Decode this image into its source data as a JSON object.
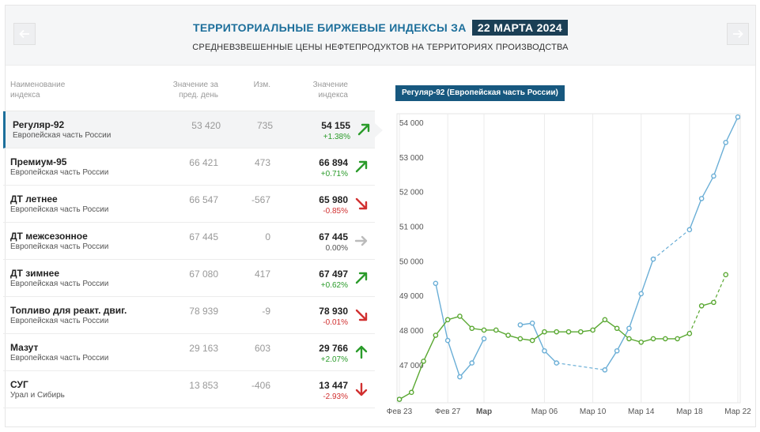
{
  "header": {
    "title": "ТЕРРИТОРИАЛЬНЫЕ БИРЖЕВЫЕ ИНДЕКСЫ ЗА",
    "date": "22 МАРТА 2024",
    "subtitle": "СРЕДНЕВЗВЕШЕННЫЕ ЦЕНЫ НЕФТЕПРОДУКТОВ НА ТЕРРИТОРИЯХ ПРОИЗВОДСТВА"
  },
  "table": {
    "headers": {
      "name_1": "Наименование",
      "name_2": "индекса",
      "prev_1": "Значение за",
      "prev_2": "пред. день",
      "change": "Изм.",
      "value_1": "Значение",
      "value_2": "индекса"
    },
    "rows": [
      {
        "name": "Регуляр-92",
        "region": "Европейская часть России",
        "prev": "53 420",
        "change": "735",
        "value": "54 155",
        "pct": "+1.38%",
        "trend": "up-right"
      },
      {
        "name": "Премиум-95",
        "region": "Европейская часть России",
        "prev": "66 421",
        "change": "473",
        "value": "66 894",
        "pct": "+0.71%",
        "trend": "up-right"
      },
      {
        "name": "ДТ летнее",
        "region": "Европейская часть России",
        "prev": "66 547",
        "change": "-567",
        "value": "65 980",
        "pct": "-0.85%",
        "trend": "down-right"
      },
      {
        "name": "ДТ межсезонное",
        "region": "Европейская часть России",
        "prev": "67 445",
        "change": "0",
        "value": "67 445",
        "pct": "0.00%",
        "trend": "flat"
      },
      {
        "name": "ДТ зимнее",
        "region": "Европейская часть России",
        "prev": "67 080",
        "change": "417",
        "value": "67 497",
        "pct": "+0.62%",
        "trend": "up-right"
      },
      {
        "name": "Топливо для реакт. двиг.",
        "region": "Европейская часть России",
        "prev": "78 939",
        "change": "-9",
        "value": "78 930",
        "pct": "-0.01%",
        "trend": "down-right"
      },
      {
        "name": "Мазут",
        "region": "Европейская часть России",
        "prev": "29 163",
        "change": "603",
        "value": "29 766",
        "pct": "+2.07%",
        "trend": "up"
      },
      {
        "name": "СУГ",
        "region": "Урал и Сибирь",
        "prev": "13 853",
        "change": "-406",
        "value": "13 447",
        "pct": "-2.93%",
        "trend": "down"
      }
    ]
  },
  "colors": {
    "accent": "#1d6f9b",
    "up": "#2a9b2a",
    "down": "#d13030",
    "flat": "#bbbbbb",
    "series_blue": "#6aaed6",
    "series_green": "#5aa832"
  },
  "icons": {
    "prev": "arrow-left-icon",
    "next": "arrow-right-icon"
  },
  "chart_data": {
    "type": "line",
    "title": "Регуляр-92 (Европейская часть России)",
    "xlabel": "",
    "ylabel": "",
    "ylim": [
      45900,
      54250
    ],
    "grid": true,
    "yticks": [
      47000,
      48000,
      49000,
      50000,
      51000,
      52000,
      53000,
      54000
    ],
    "ytick_labels": [
      "47 000",
      "48 000",
      "49 000",
      "50 000",
      "51 000",
      "52 000",
      "53 000",
      "54 000"
    ],
    "xlim": [
      "2024-02-23",
      "2024-03-22"
    ],
    "xticks": [
      {
        "date": "2024-02-23",
        "label": "Фев 23",
        "bold": false
      },
      {
        "date": "2024-02-27",
        "label": "Фев 27",
        "bold": false
      },
      {
        "date": "2024-03-01",
        "label": "Мар",
        "bold": true
      },
      {
        "date": "2024-03-06",
        "label": "Мар 06",
        "bold": false
      },
      {
        "date": "2024-03-10",
        "label": "Мар 10",
        "bold": false
      },
      {
        "date": "2024-03-14",
        "label": "Мар 14",
        "bold": false
      },
      {
        "date": "2024-03-18",
        "label": "Мар 18",
        "bold": false
      },
      {
        "date": "2024-03-22",
        "label": "Мар 22",
        "bold": false
      }
    ],
    "series": [
      {
        "color": "#6aaed6",
        "segments": [
          [
            [
              "2024-02-23",
              46000
            ]
          ],
          [
            [
              "2024-02-26",
              49350
            ],
            [
              "2024-02-27",
              47700
            ],
            [
              "2024-02-28",
              46650
            ],
            [
              "2024-02-29",
              47050
            ],
            [
              "2024-03-01",
              47750
            ]
          ],
          [
            [
              "2024-03-04",
              48150
            ],
            [
              "2024-03-05",
              48200
            ],
            [
              "2024-03-06",
              47400
            ],
            [
              "2024-03-07",
              47050
            ]
          ],
          [
            [
              "2024-03-11",
              46850
            ],
            [
              "2024-03-12",
              47400
            ],
            [
              "2024-03-13",
              48050
            ],
            [
              "2024-03-14",
              49050
            ],
            [
              "2024-03-15",
              50050
            ]
          ],
          [
            [
              "2024-03-18",
              50900
            ],
            [
              "2024-03-19",
              51800
            ],
            [
              "2024-03-20",
              52450
            ],
            [
              "2024-03-21",
              53420
            ],
            [
              "2024-03-22",
              54155
            ]
          ]
        ],
        "gaps": [
          [
            [
              "2024-03-07",
              47050
            ],
            [
              "2024-03-11",
              46850
            ]
          ],
          [
            [
              "2024-03-15",
              50050
            ],
            [
              "2024-03-18",
              50900
            ]
          ]
        ]
      },
      {
        "color": "#5aa832",
        "segments": [
          [
            [
              "2024-02-23",
              46000
            ],
            [
              "2024-02-24",
              46200
            ],
            [
              "2024-02-25",
              47100
            ],
            [
              "2024-02-26",
              47850
            ],
            [
              "2024-02-27",
              48300
            ],
            [
              "2024-02-28",
              48400
            ],
            [
              "2024-02-29",
              48050
            ],
            [
              "2024-03-01",
              48000
            ],
            [
              "2024-03-02",
              48000
            ],
            [
              "2024-03-03",
              47850
            ],
            [
              "2024-03-04",
              47750
            ],
            [
              "2024-03-05",
              47700
            ],
            [
              "2024-03-06",
              47950
            ],
            [
              "2024-03-07",
              47950
            ],
            [
              "2024-03-08",
              47950
            ],
            [
              "2024-03-09",
              47950
            ],
            [
              "2024-03-10",
              48000
            ],
            [
              "2024-03-11",
              48300
            ],
            [
              "2024-03-12",
              48050
            ],
            [
              "2024-03-13",
              47750
            ],
            [
              "2024-03-14",
              47650
            ],
            [
              "2024-03-15",
              47750
            ],
            [
              "2024-03-16",
              47750
            ],
            [
              "2024-03-17",
              47750
            ],
            [
              "2024-03-18",
              47900
            ]
          ],
          [
            [
              "2024-03-19",
              48700
            ],
            [
              "2024-03-20",
              48800
            ]
          ]
        ],
        "gaps": [
          [
            [
              "2024-03-18",
              47900
            ],
            [
              "2024-03-19",
              48700
            ]
          ],
          [
            [
              "2024-03-20",
              48800
            ],
            [
              "2024-03-21",
              49600
            ]
          ]
        ],
        "markers_only": [
          [
            "2024-03-21",
            49600
          ]
        ]
      }
    ]
  }
}
